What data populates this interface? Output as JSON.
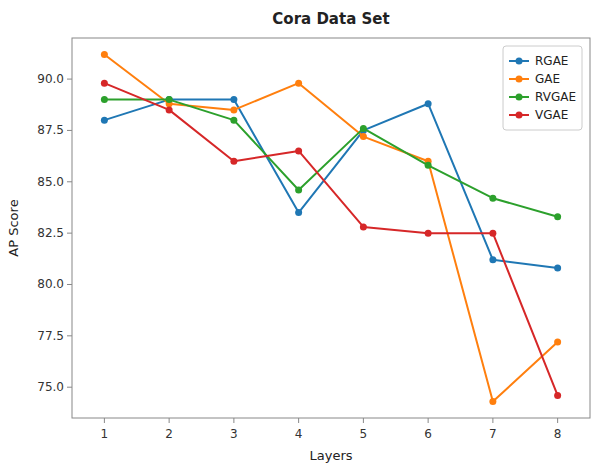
{
  "chart_data": {
    "type": "line",
    "title": "Cora Data Set",
    "xlabel": "Layers",
    "ylabel": "AP Score",
    "x": [
      1,
      2,
      3,
      4,
      5,
      6,
      7,
      8
    ],
    "series": [
      {
        "name": "RGAE",
        "color": "#1f77b4",
        "marker": "circle",
        "values": [
          88.0,
          89.0,
          89.0,
          83.5,
          87.5,
          88.8,
          81.2,
          80.8
        ]
      },
      {
        "name": "GAE",
        "color": "#ff7f0e",
        "marker": "circle",
        "values": [
          91.2,
          88.8,
          88.5,
          89.8,
          87.2,
          86.0,
          74.3,
          77.2
        ]
      },
      {
        "name": "RVGAE",
        "color": "#2ca02c",
        "marker": "circle",
        "values": [
          89.0,
          89.0,
          88.0,
          84.6,
          87.6,
          85.8,
          84.2,
          83.3
        ]
      },
      {
        "name": "VGAE",
        "color": "#d62728",
        "marker": "circle",
        "values": [
          89.8,
          88.5,
          86.0,
          86.5,
          82.8,
          82.5,
          82.5,
          74.6
        ]
      }
    ],
    "xlim": [
      0.5,
      8.5
    ],
    "xticks": [
      1,
      2,
      3,
      4,
      5,
      6,
      7,
      8
    ],
    "ylim": [
      73.5,
      92.0
    ],
    "yticks": [
      {
        "value": 75.0,
        "label": "75.0"
      },
      77.5,
      {
        "value": 80.0,
        "label": "80.0"
      },
      82.5,
      {
        "value": 85.0,
        "label": "85.0"
      },
      87.5,
      {
        "value": 90.0,
        "label": "90.0"
      }
    ],
    "legend": "upper right",
    "grid": false
  }
}
